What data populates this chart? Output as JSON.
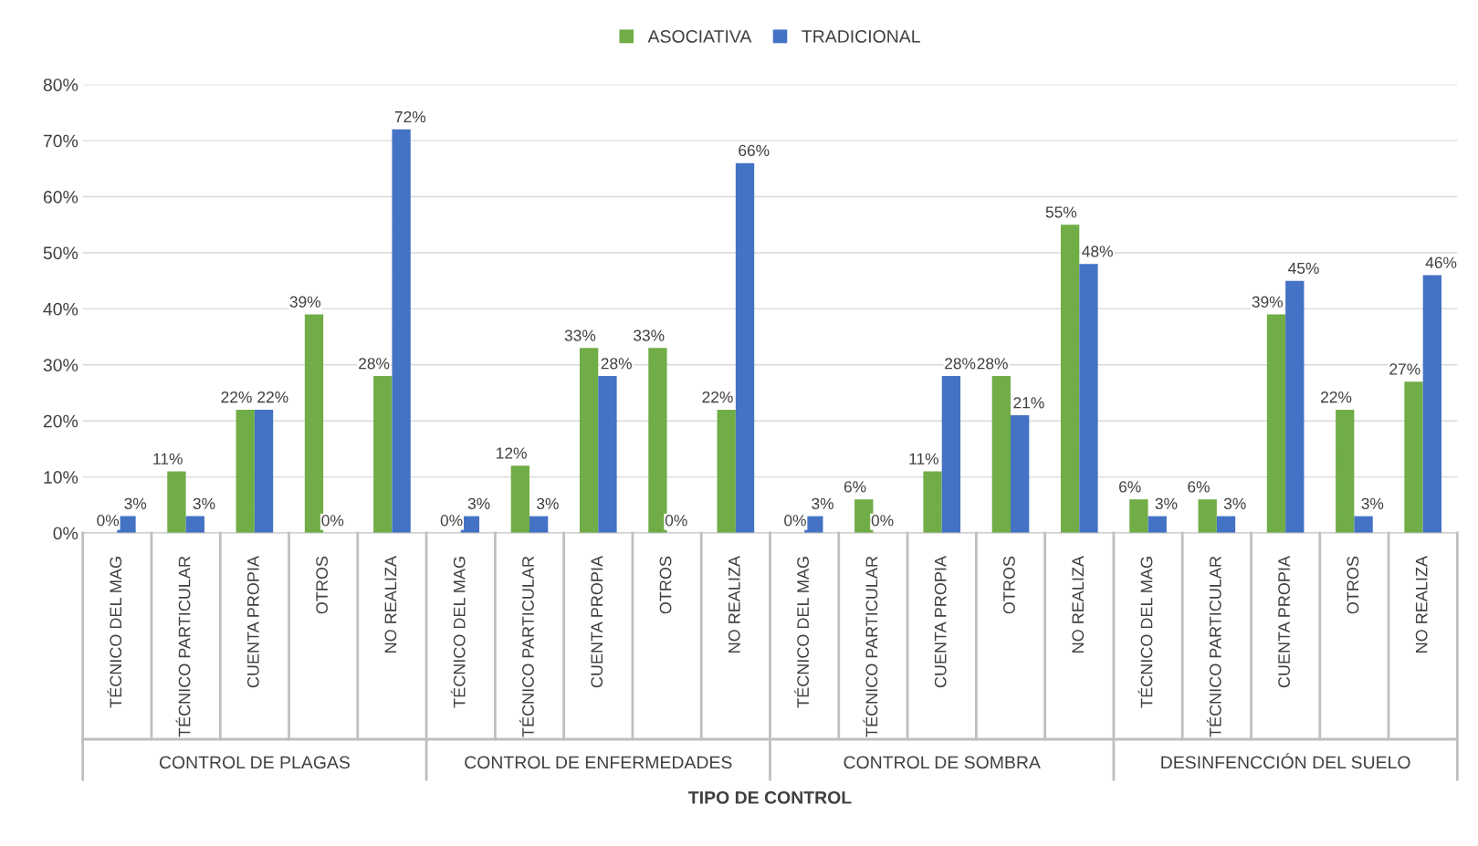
{
  "chart_data": {
    "type": "bar",
    "xlabel": "TIPO DE CONTROL",
    "categories": [
      "TÉCNICO DEL MAG",
      "TÉCNICO PARTICULAR",
      "CUENTA PROPIA",
      "OTROS",
      "NO REALIZA",
      "TÉCNICO DEL MAG",
      "TÉCNICO PARTICULAR",
      "CUENTA PROPIA",
      "OTROS",
      "NO REALIZA",
      "TÉCNICO DEL MAG",
      "TÉCNICO PARTICULAR",
      "CUENTA PROPIA",
      "OTROS",
      "NO REALIZA",
      "TÉCNICO DEL MAG",
      "TÉCNICO PARTICULAR",
      "CUENTA PROPIA",
      "OTROS",
      "NO REALIZA"
    ],
    "annotations": [
      "CONTROL DE PLAGAS",
      "CONTROL DE ENFERMEDADES",
      "CONTROL DE SOMBRA",
      "DESINFENCCIÓN DEL SUELO"
    ],
    "series": [
      {
        "name": "ASOCIATIVA",
        "color": "#70ad47",
        "values": [
          0,
          11,
          22,
          39,
          28,
          0,
          12,
          33,
          33,
          22,
          0,
          6,
          11,
          28,
          55,
          6,
          6,
          39,
          22,
          27
        ],
        "value_labels": [
          "0%",
          "11%",
          "22%",
          "39%",
          "28%",
          "0%",
          "12%",
          "33%",
          "33%",
          "22%",
          "0%",
          "6%",
          "11%",
          "28%",
          "55%",
          "6%",
          "6%",
          "39%",
          "22%",
          "27%"
        ]
      },
      {
        "name": "TRADICIONAL",
        "color": "#4472c4",
        "values": [
          3,
          3,
          22,
          0,
          72,
          3,
          3,
          28,
          0,
          66,
          3,
          0,
          28,
          21,
          48,
          3,
          3,
          45,
          3,
          46
        ],
        "value_labels": [
          "3%",
          "3%",
          "22%",
          "0%",
          "72%",
          "3%",
          "3%",
          "28%",
          "0%",
          "66%",
          "3%",
          "0%",
          "28%",
          "21%",
          "48%",
          "3%",
          "3%",
          "45%",
          "3%",
          "46%"
        ]
      }
    ],
    "ylim": [
      0,
      80
    ],
    "yticks": [
      {
        "value": 0,
        "label": "0%"
      },
      {
        "value": 10,
        "label": "10%"
      },
      {
        "value": 20,
        "label": "20%"
      },
      {
        "value": 30,
        "label": "30%"
      },
      {
        "value": 40,
        "label": "40%"
      },
      {
        "value": 50,
        "label": "50%"
      },
      {
        "value": 60,
        "label": "60%"
      },
      {
        "value": 70,
        "label": "70%"
      },
      {
        "value": 80,
        "label": "80%"
      }
    ],
    "grid": "y",
    "legend": "top"
  }
}
